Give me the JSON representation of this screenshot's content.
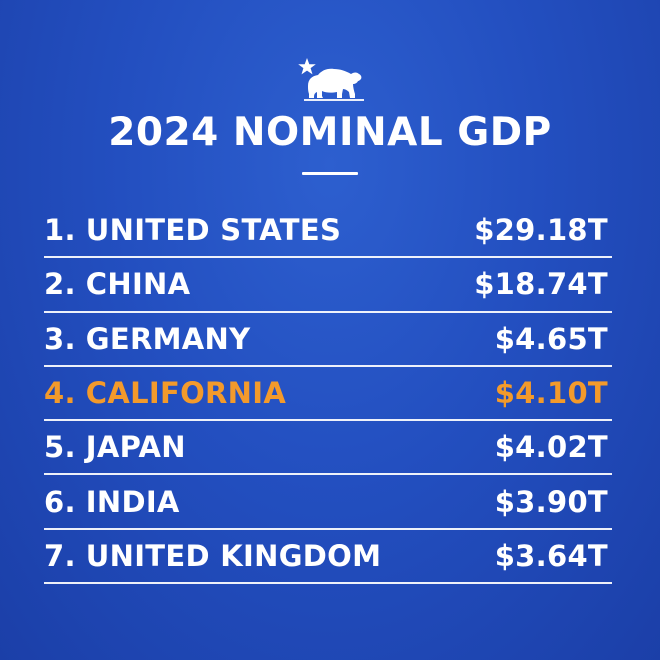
{
  "title": "2024 NOMINAL GDP",
  "logo_icon": "california-bear-star-icon",
  "colors": {
    "background": "#234fc0",
    "text": "#ffffff",
    "highlight": "#f39a2b"
  },
  "rows": [
    {
      "rank": "1.",
      "name": "UNITED STATES",
      "value": "$29.18T",
      "highlight": false
    },
    {
      "rank": "2.",
      "name": "CHINA",
      "value": "$18.74T",
      "highlight": false
    },
    {
      "rank": "3.",
      "name": "GERMANY",
      "value": "$4.65T",
      "highlight": false
    },
    {
      "rank": "4.",
      "name": "CALIFORNIA",
      "value": "$4.10T",
      "highlight": true
    },
    {
      "rank": "5.",
      "name": "JAPAN",
      "value": "$4.02T",
      "highlight": false
    },
    {
      "rank": "6.",
      "name": "INDIA",
      "value": "$3.90T",
      "highlight": false
    },
    {
      "rank": "7.",
      "name": "UNITED KINGDOM",
      "value": "$3.64T",
      "highlight": false
    }
  ]
}
